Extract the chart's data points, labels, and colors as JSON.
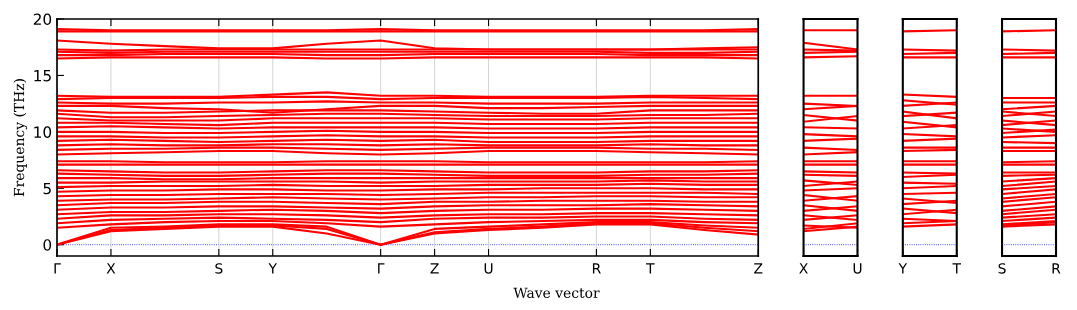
{
  "chart_data": [
    {
      "type": "line",
      "ylabel": "Frequency (THz)",
      "xlabel": "Wave vector",
      "ylim": [
        -1,
        20
      ],
      "yticks": [
        0,
        5,
        10,
        15,
        20
      ],
      "grid": "x",
      "line_style": "solid",
      "categories": [
        "Γ",
        "X",
        null,
        "S",
        "Y",
        null,
        "Γ",
        "Z",
        "U",
        null,
        "R",
        "T",
        null,
        "Z"
      ],
      "ref_lines": [
        {
          "axis": "y",
          "value": 0,
          "color": "#0000ff",
          "line_style": "dotted"
        }
      ],
      "series": [
        {
          "color": "#ff0000",
          "values": [
            0,
            1.2,
            1.4,
            1.6,
            1.6,
            1.0,
            0,
            1.0,
            1.3,
            1.5,
            1.8,
            1.8,
            1.3,
            0.9
          ]
        },
        {
          "color": "#ff0000",
          "values": [
            0,
            1.3,
            1.5,
            1.7,
            1.7,
            1.4,
            0,
            1.1,
            1.4,
            1.6,
            1.9,
            1.9,
            1.5,
            1.2
          ]
        },
        {
          "color": "#ff0000",
          "values": [
            0,
            1.5,
            1.6,
            1.8,
            1.8,
            1.6,
            0,
            1.4,
            1.6,
            1.8,
            2.0,
            2.0,
            1.7,
            1.5
          ]
        },
        {
          "color": "#ff0000",
          "values": [
            1.5,
            1.8,
            2.0,
            2.1,
            2.1,
            1.9,
            1.6,
            1.8,
            2.0,
            2.1,
            2.2,
            2.2,
            2.0,
            1.9
          ]
        },
        {
          "color": "#ff0000",
          "values": [
            1.9,
            2.2,
            2.3,
            2.4,
            2.3,
            2.2,
            2.0,
            2.3,
            2.4,
            2.4,
            2.5,
            2.5,
            2.3,
            2.2
          ]
        },
        {
          "color": "#ff0000",
          "values": [
            2.3,
            2.6,
            2.6,
            2.7,
            2.7,
            2.6,
            2.4,
            2.6,
            2.7,
            2.7,
            2.8,
            2.8,
            2.7,
            2.6
          ]
        },
        {
          "color": "#ff0000",
          "values": [
            2.7,
            2.9,
            2.9,
            3.0,
            3.1,
            3.0,
            2.8,
            3.0,
            3.1,
            3.1,
            3.2,
            3.2,
            3.1,
            3.0
          ]
        },
        {
          "color": "#ff0000",
          "values": [
            3.1,
            3.3,
            3.3,
            3.4,
            3.4,
            3.3,
            3.2,
            3.4,
            3.5,
            3.5,
            3.5,
            3.6,
            3.5,
            3.4
          ]
        },
        {
          "color": "#ff0000",
          "values": [
            3.5,
            3.7,
            3.7,
            3.8,
            3.8,
            3.7,
            3.6,
            3.8,
            3.8,
            3.9,
            3.9,
            3.9,
            3.8,
            3.8
          ]
        },
        {
          "color": "#ff0000",
          "values": [
            3.9,
            4.0,
            4.0,
            4.1,
            4.2,
            4.1,
            4.0,
            4.1,
            4.2,
            4.2,
            4.3,
            4.3,
            4.2,
            4.2
          ]
        },
        {
          "color": "#ff0000",
          "values": [
            4.3,
            4.4,
            4.4,
            4.5,
            4.5,
            4.5,
            4.4,
            4.5,
            4.6,
            4.6,
            4.6,
            4.6,
            4.6,
            4.5
          ]
        },
        {
          "color": "#ff0000",
          "values": [
            4.7,
            4.8,
            4.8,
            4.9,
            4.9,
            4.8,
            4.8,
            4.9,
            4.9,
            5.0,
            5.0,
            5.0,
            4.9,
            4.9
          ]
        },
        {
          "color": "#ff0000",
          "values": [
            5.1,
            5.2,
            5.2,
            5.2,
            5.3,
            5.2,
            5.2,
            5.2,
            5.3,
            5.3,
            5.3,
            5.4,
            5.3,
            5.3
          ]
        },
        {
          "color": "#ff0000",
          "values": [
            5.5,
            5.5,
            5.6,
            5.6,
            5.6,
            5.6,
            5.5,
            5.6,
            5.6,
            5.6,
            5.6,
            5.7,
            5.6,
            5.6
          ]
        },
        {
          "color": "#ff0000",
          "values": [
            5.9,
            5.9,
            5.8,
            5.8,
            5.9,
            5.9,
            5.9,
            5.9,
            5.9,
            5.9,
            5.9,
            5.9,
            5.9,
            5.9
          ]
        },
        {
          "color": "#ff0000",
          "values": [
            6.3,
            6.2,
            6.1,
            6.1,
            6.2,
            6.3,
            6.3,
            6.2,
            6.1,
            6.1,
            6.1,
            6.2,
            6.2,
            6.3
          ]
        },
        {
          "color": "#ff0000",
          "values": [
            6.6,
            6.5,
            6.4,
            6.4,
            6.5,
            6.6,
            6.6,
            6.5,
            6.4,
            6.4,
            6.4,
            6.5,
            6.5,
            6.6
          ]
        },
        {
          "color": "#ff0000",
          "values": [
            7.1,
            7.1,
            7.1,
            7.1,
            7.1,
            7.1,
            7.1,
            7.1,
            7.1,
            7.1,
            7.1,
            7.1,
            7.1,
            7.1
          ]
        },
        {
          "color": "#ff0000",
          "values": [
            7.4,
            7.4,
            7.3,
            7.3,
            7.3,
            7.4,
            7.4,
            7.4,
            7.3,
            7.3,
            7.3,
            7.3,
            7.3,
            7.4
          ]
        },
        {
          "color": "#ff0000",
          "values": [
            8.0,
            8.1,
            8.2,
            8.3,
            8.3,
            8.1,
            8.0,
            8.1,
            8.3,
            8.3,
            8.3,
            8.2,
            8.1,
            8.0
          ]
        },
        {
          "color": "#ff0000",
          "values": [
            8.4,
            8.5,
            8.5,
            8.6,
            8.6,
            8.5,
            8.4,
            8.5,
            8.6,
            8.6,
            8.6,
            8.5,
            8.5,
            8.4
          ]
        },
        {
          "color": "#ff0000",
          "values": [
            8.8,
            8.9,
            8.8,
            8.8,
            8.9,
            8.9,
            8.8,
            8.9,
            8.8,
            8.8,
            8.8,
            8.9,
            8.8,
            8.8
          ]
        },
        {
          "color": "#ff0000",
          "values": [
            9.2,
            9.3,
            9.2,
            9.1,
            9.2,
            9.3,
            9.2,
            9.3,
            9.1,
            9.1,
            9.1,
            9.2,
            9.2,
            9.2
          ]
        },
        {
          "color": "#ff0000",
          "values": [
            9.6,
            9.6,
            9.5,
            9.5,
            9.6,
            9.7,
            9.6,
            9.6,
            9.5,
            9.5,
            9.5,
            9.6,
            9.6,
            9.6
          ]
        },
        {
          "color": "#ff0000",
          "values": [
            10.0,
            10.0,
            9.9,
            9.9,
            10.0,
            10.1,
            10.0,
            10.0,
            9.9,
            9.9,
            9.9,
            10.0,
            10.0,
            10.0
          ]
        },
        {
          "color": "#ff0000",
          "values": [
            10.4,
            10.5,
            10.4,
            10.3,
            10.4,
            10.4,
            10.4,
            10.4,
            10.3,
            10.3,
            10.3,
            10.4,
            10.4,
            10.4
          ]
        },
        {
          "color": "#ff0000",
          "values": [
            10.8,
            10.8,
            10.7,
            10.6,
            10.8,
            10.8,
            10.8,
            10.8,
            10.7,
            10.7,
            10.7,
            10.8,
            10.8,
            10.8
          ]
        },
        {
          "color": "#ff0000",
          "values": [
            11.2,
            11.0,
            11.0,
            11.0,
            11.2,
            11.2,
            11.2,
            11.2,
            11.1,
            11.1,
            11.1,
            11.2,
            11.2,
            11.2
          ]
        },
        {
          "color": "#ff0000",
          "values": [
            11.6,
            11.3,
            11.3,
            11.4,
            11.5,
            11.6,
            11.6,
            11.5,
            11.4,
            11.4,
            11.4,
            11.5,
            11.5,
            11.6
          ]
        },
        {
          "color": "#ff0000",
          "values": [
            11.9,
            11.7,
            11.7,
            11.8,
            11.9,
            11.9,
            11.9,
            11.8,
            11.7,
            11.6,
            11.6,
            11.9,
            11.9,
            11.9
          ]
        },
        {
          "color": "#ff0000",
          "values": [
            12.3,
            12.3,
            12.1,
            12.0,
            11.7,
            12.0,
            12.3,
            12.3,
            12.1,
            12.1,
            12.2,
            12.3,
            12.3,
            12.3
          ]
        },
        {
          "color": "#ff0000",
          "values": [
            12.6,
            12.5,
            12.5,
            12.6,
            12.6,
            12.7,
            12.6,
            12.6,
            12.5,
            12.5,
            12.5,
            12.6,
            12.6,
            12.6
          ]
        },
        {
          "color": "#ff0000",
          "values": [
            12.9,
            13.0,
            13.0,
            13.0,
            13.1,
            13.1,
            12.9,
            13.0,
            13.0,
            13.0,
            13.0,
            13.1,
            13.0,
            12.9
          ]
        },
        {
          "color": "#ff0000",
          "values": [
            13.2,
            13.1,
            13.1,
            13.1,
            13.3,
            13.5,
            13.2,
            13.2,
            13.1,
            13.1,
            13.1,
            13.2,
            13.2,
            13.2
          ]
        },
        {
          "color": "#ff0000",
          "values": [
            16.5,
            16.6,
            16.6,
            16.6,
            16.6,
            16.5,
            16.5,
            16.6,
            16.6,
            16.6,
            16.6,
            16.6,
            16.6,
            16.5
          ]
        },
        {
          "color": "#ff0000",
          "values": [
            16.8,
            16.8,
            16.9,
            16.9,
            16.9,
            16.8,
            16.8,
            16.9,
            16.9,
            16.9,
            16.9,
            16.8,
            16.8,
            16.8
          ]
        },
        {
          "color": "#ff0000",
          "values": [
            17.1,
            17.0,
            17.1,
            17.1,
            17.1,
            17.1,
            17.1,
            17.1,
            17.1,
            17.1,
            17.1,
            17.0,
            17.0,
            17.1
          ]
        },
        {
          "color": "#ff0000",
          "values": [
            17.3,
            17.2,
            17.3,
            17.3,
            17.3,
            17.3,
            17.3,
            17.3,
            17.3,
            17.3,
            17.3,
            17.3,
            17.3,
            17.3
          ]
        },
        {
          "color": "#ff0000",
          "values": [
            18.1,
            17.8,
            17.6,
            17.4,
            17.4,
            17.8,
            18.1,
            17.4,
            17.3,
            17.3,
            17.3,
            17.3,
            17.4,
            17.5
          ]
        },
        {
          "color": "#ff0000",
          "values": [
            18.9,
            18.9,
            18.9,
            18.9,
            18.9,
            18.9,
            18.9,
            18.9,
            18.9,
            18.9,
            18.9,
            18.9,
            18.9,
            18.9
          ]
        },
        {
          "color": "#ff0000",
          "values": [
            19.1,
            19.0,
            19.0,
            19.0,
            19.0,
            19.0,
            19.1,
            19.0,
            19.0,
            19.0,
            19.0,
            19.0,
            19.0,
            19.1
          ]
        }
      ]
    },
    {
      "type": "line",
      "ylim": [
        -1,
        20
      ],
      "tick_labels": "x",
      "line_style": "solid",
      "categories": [
        "X",
        "U"
      ],
      "ref_lines": [
        {
          "axis": "y",
          "value": 0,
          "color": "#0000ff",
          "line_style": "dotted"
        }
      ],
      "series": [
        {
          "color": "#ff0000",
          "values": [
            1.2,
            1.6
          ]
        },
        {
          "color": "#ff0000",
          "values": [
            1.4,
            1.9
          ]
        },
        {
          "color": "#ff0000",
          "values": [
            1.7,
            1.5
          ]
        },
        {
          "color": "#ff0000",
          "values": [
            2.2,
            2.6
          ]
        },
        {
          "color": "#ff0000",
          "values": [
            2.6,
            2.2
          ]
        },
        {
          "color": "#ff0000",
          "values": [
            3.0,
            3.4
          ]
        },
        {
          "color": "#ff0000",
          "values": [
            3.5,
            3.0
          ]
        },
        {
          "color": "#ff0000",
          "values": [
            3.9,
            4.3
          ]
        },
        {
          "color": "#ff0000",
          "values": [
            4.4,
            3.9
          ]
        },
        {
          "color": "#ff0000",
          "values": [
            4.8,
            5.0
          ]
        },
        {
          "color": "#ff0000",
          "values": [
            5.2,
            5.6
          ]
        },
        {
          "color": "#ff0000",
          "values": [
            5.7,
            5.3
          ]
        },
        {
          "color": "#ff0000",
          "values": [
            6.2,
            6.1
          ]
        },
        {
          "color": "#ff0000",
          "values": [
            6.5,
            6.4
          ]
        },
        {
          "color": "#ff0000",
          "values": [
            7.1,
            7.1
          ]
        },
        {
          "color": "#ff0000",
          "values": [
            7.4,
            7.4
          ]
        },
        {
          "color": "#ff0000",
          "values": [
            8.0,
            8.2
          ]
        },
        {
          "color": "#ff0000",
          "values": [
            8.6,
            8.4
          ]
        },
        {
          "color": "#ff0000",
          "values": [
            9.2,
            9.4
          ]
        },
        {
          "color": "#ff0000",
          "values": [
            9.8,
            9.6
          ]
        },
        {
          "color": "#ff0000",
          "values": [
            10.4,
            10.3
          ]
        },
        {
          "color": "#ff0000",
          "values": [
            10.9,
            11.4
          ]
        },
        {
          "color": "#ff0000",
          "values": [
            11.5,
            11.0
          ]
        },
        {
          "color": "#ff0000",
          "values": [
            12.0,
            12.3
          ]
        },
        {
          "color": "#ff0000",
          "values": [
            12.5,
            12.3
          ]
        },
        {
          "color": "#ff0000",
          "values": [
            13.2,
            13.2
          ]
        },
        {
          "color": "#ff0000",
          "values": [
            16.6,
            16.7
          ]
        },
        {
          "color": "#ff0000",
          "values": [
            17.0,
            17.1
          ]
        },
        {
          "color": "#ff0000",
          "values": [
            17.3,
            17.2
          ]
        },
        {
          "color": "#ff0000",
          "values": [
            17.9,
            17.3
          ]
        },
        {
          "color": "#ff0000",
          "values": [
            19.0,
            19.0
          ]
        }
      ]
    },
    {
      "type": "line",
      "ylim": [
        -1,
        20
      ],
      "tick_labels": "x",
      "line_style": "solid",
      "categories": [
        "Y",
        "T"
      ],
      "ref_lines": [
        {
          "axis": "y",
          "value": 0,
          "color": "#0000ff",
          "line_style": "dotted"
        }
      ],
      "series": [
        {
          "color": "#ff0000",
          "values": [
            1.6,
            1.8
          ]
        },
        {
          "color": "#ff0000",
          "values": [
            1.9,
            2.1
          ]
        },
        {
          "color": "#ff0000",
          "values": [
            2.3,
            2.1
          ]
        },
        {
          "color": "#ff0000",
          "values": [
            2.7,
            3.1
          ]
        },
        {
          "color": "#ff0000",
          "values": [
            3.2,
            2.8
          ]
        },
        {
          "color": "#ff0000",
          "values": [
            3.6,
            3.9
          ]
        },
        {
          "color": "#ff0000",
          "values": [
            4.1,
            3.7
          ]
        },
        {
          "color": "#ff0000",
          "values": [
            4.5,
            4.6
          ]
        },
        {
          "color": "#ff0000",
          "values": [
            5.0,
            5.2
          ]
        },
        {
          "color": "#ff0000",
          "values": [
            5.5,
            5.4
          ]
        },
        {
          "color": "#ff0000",
          "values": [
            6.0,
            6.2
          ]
        },
        {
          "color": "#ff0000",
          "values": [
            6.4,
            6.3
          ]
        },
        {
          "color": "#ff0000",
          "values": [
            7.1,
            7.1
          ]
        },
        {
          "color": "#ff0000",
          "values": [
            7.4,
            7.4
          ]
        },
        {
          "color": "#ff0000",
          "values": [
            8.3,
            8.4
          ]
        },
        {
          "color": "#ff0000",
          "values": [
            8.6,
            8.6
          ]
        },
        {
          "color": "#ff0000",
          "values": [
            9.2,
            9.4
          ]
        },
        {
          "color": "#ff0000",
          "values": [
            9.8,
            9.6
          ]
        },
        {
          "color": "#ff0000",
          "values": [
            10.3,
            10.6
          ]
        },
        {
          "color": "#ff0000",
          "values": [
            10.9,
            10.4
          ]
        },
        {
          "color": "#ff0000",
          "values": [
            11.4,
            11.7
          ]
        },
        {
          "color": "#ff0000",
          "values": [
            11.8,
            11.2
          ]
        },
        {
          "color": "#ff0000",
          "values": [
            12.3,
            12.6
          ]
        },
        {
          "color": "#ff0000",
          "values": [
            12.8,
            12.4
          ]
        },
        {
          "color": "#ff0000",
          "values": [
            13.3,
            13.1
          ]
        },
        {
          "color": "#ff0000",
          "values": [
            16.6,
            16.6
          ]
        },
        {
          "color": "#ff0000",
          "values": [
            16.9,
            17.0
          ]
        },
        {
          "color": "#ff0000",
          "values": [
            17.3,
            17.2
          ]
        },
        {
          "color": "#ff0000",
          "values": [
            18.9,
            19.0
          ]
        }
      ]
    },
    {
      "type": "line",
      "ylim": [
        -1,
        20
      ],
      "tick_labels": "x",
      "line_style": "solid",
      "categories": [
        "S",
        "R"
      ],
      "ref_lines": [
        {
          "axis": "y",
          "value": 0,
          "color": "#0000ff",
          "line_style": "dotted"
        }
      ],
      "series": [
        {
          "color": "#ff0000",
          "values": [
            1.6,
            1.8
          ]
        },
        {
          "color": "#ff0000",
          "values": [
            1.7,
            2.0
          ]
        },
        {
          "color": "#ff0000",
          "values": [
            1.8,
            2.1
          ]
        },
        {
          "color": "#ff0000",
          "values": [
            2.1,
            2.4
          ]
        },
        {
          "color": "#ff0000",
          "values": [
            2.4,
            2.7
          ]
        },
        {
          "color": "#ff0000",
          "values": [
            2.7,
            3.1
          ]
        },
        {
          "color": "#ff0000",
          "values": [
            3.0,
            3.4
          ]
        },
        {
          "color": "#ff0000",
          "values": [
            3.4,
            3.8
          ]
        },
        {
          "color": "#ff0000",
          "values": [
            3.8,
            4.2
          ]
        },
        {
          "color": "#ff0000",
          "values": [
            4.1,
            4.5
          ]
        },
        {
          "color": "#ff0000",
          "values": [
            4.5,
            4.9
          ]
        },
        {
          "color": "#ff0000",
          "values": [
            4.9,
            5.2
          ]
        },
        {
          "color": "#ff0000",
          "values": [
            5.2,
            5.6
          ]
        },
        {
          "color": "#ff0000",
          "values": [
            5.6,
            5.9
          ]
        },
        {
          "color": "#ff0000",
          "values": [
            6.1,
            6.2
          ]
        },
        {
          "color": "#ff0000",
          "values": [
            6.4,
            6.4
          ]
        },
        {
          "color": "#ff0000",
          "values": [
            7.1,
            7.1
          ]
        },
        {
          "color": "#ff0000",
          "values": [
            7.3,
            7.4
          ]
        },
        {
          "color": "#ff0000",
          "values": [
            8.3,
            8.3
          ]
        },
        {
          "color": "#ff0000",
          "values": [
            8.6,
            8.6
          ]
        },
        {
          "color": "#ff0000",
          "values": [
            9.1,
            9.0
          ]
        },
        {
          "color": "#ff0000",
          "values": [
            9.5,
            9.7
          ]
        },
        {
          "color": "#ff0000",
          "values": [
            9.9,
            10.2
          ]
        },
        {
          "color": "#ff0000",
          "values": [
            10.3,
            10.0
          ]
        },
        {
          "color": "#ff0000",
          "values": [
            10.6,
            11.0
          ]
        },
        {
          "color": "#ff0000",
          "values": [
            11.0,
            10.6
          ]
        },
        {
          "color": "#ff0000",
          "values": [
            11.4,
            11.8
          ]
        },
        {
          "color": "#ff0000",
          "values": [
            11.8,
            11.4
          ]
        },
        {
          "color": "#ff0000",
          "values": [
            12.0,
            12.3
          ]
        },
        {
          "color": "#ff0000",
          "values": [
            12.6,
            12.6
          ]
        },
        {
          "color": "#ff0000",
          "values": [
            13.0,
            13.0
          ]
        },
        {
          "color": "#ff0000",
          "values": [
            16.6,
            16.6
          ]
        },
        {
          "color": "#ff0000",
          "values": [
            16.9,
            17.0
          ]
        },
        {
          "color": "#ff0000",
          "values": [
            17.3,
            17.2
          ]
        },
        {
          "color": "#ff0000",
          "values": [
            18.9,
            19.0
          ]
        }
      ]
    }
  ]
}
